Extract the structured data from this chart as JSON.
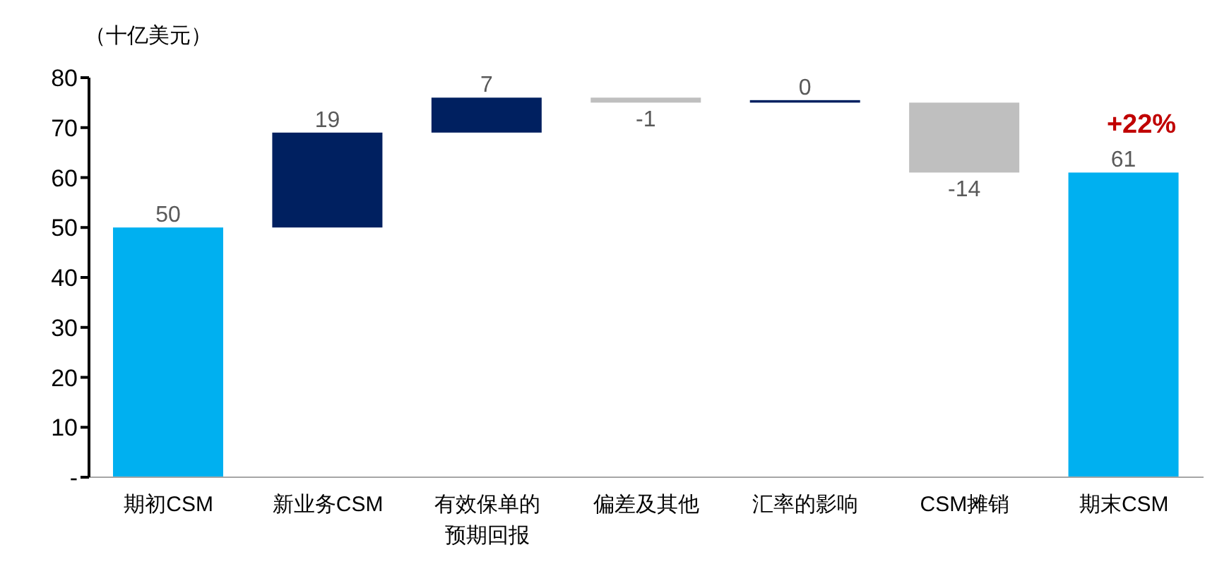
{
  "chart_data": {
    "type": "bar",
    "ylabel": "（十亿美元）",
    "categories": [
      "期初CSM",
      "新业务CSM",
      "有效保单的预期回报",
      "偏差及其他",
      "汇率的影响",
      "CSM摊销",
      "期末CSM"
    ],
    "values": [
      50,
      19,
      7,
      -1,
      0.5,
      -14,
      61
    ],
    "value_labels": [
      "50",
      "19",
      "7",
      "-1",
      "0",
      "-14",
      "61"
    ],
    "base": [
      0,
      50,
      69,
      76,
      75,
      75,
      0
    ],
    "colors": [
      "#00b0f0",
      "#002060",
      "#002060",
      "#bfbfbf",
      "#002060",
      "#bfbfbf",
      "#00b0f0"
    ],
    "ylim": [
      0,
      80
    ],
    "yticks": [
      {
        "value": 0,
        "label": "-"
      },
      10,
      20,
      30,
      40,
      50,
      60,
      70,
      80
    ],
    "grid": false,
    "legend": false,
    "annotations": [
      "+22%"
    ]
  }
}
